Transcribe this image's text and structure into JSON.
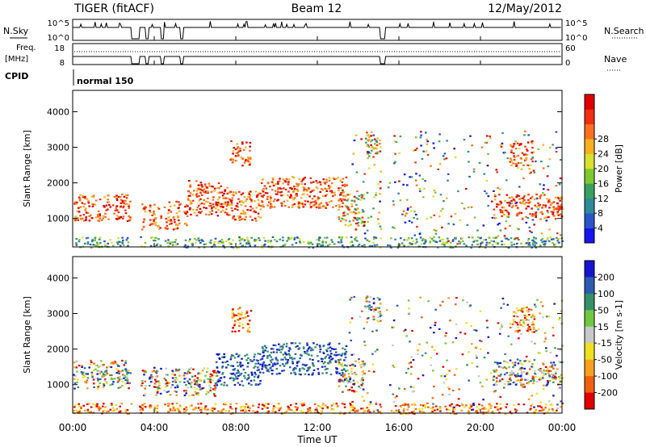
{
  "header": {
    "radar": "TIGER (fitACF)",
    "beam": "Beam 12",
    "date": "12/May/2012"
  },
  "top_panels": {
    "nsky_label": "N.Sky",
    "nsky_ticks": [
      "10^5",
      "10^0"
    ],
    "nsearch_label": "N.Search",
    "nsearch_ticks": [
      "10^5",
      "10^0"
    ],
    "freq_label_1": "Freq.",
    "freq_label_2": "[MHz]",
    "freq_ticks": [
      "18",
      "8"
    ],
    "nave_label": "Nave",
    "nave_ticks": [
      "60",
      "0"
    ],
    "cpid_label": "CPID",
    "cpid_value": "normal 150"
  },
  "chart_data": [
    {
      "type": "heatmap",
      "name": "power-panel",
      "ylabel": "Slant Range [km]",
      "ylim": [
        200,
        4600
      ],
      "yticks": [
        "1000",
        "2000",
        "3000",
        "4000"
      ],
      "x_range_hours": [
        0,
        24
      ],
      "colorbar": {
        "label": "Power [dB]",
        "ticks": [
          "4",
          "8",
          "12",
          "16",
          "20",
          "24",
          "28"
        ],
        "colors": [
          "#1515f0",
          "#2a55c8",
          "#2e8a9a",
          "#3aa060",
          "#80c830",
          "#d8e030",
          "#f8b020",
          "#f87020",
          "#f03010",
          "#e00000"
        ]
      },
      "features": [
        {
          "t0": 0.0,
          "t1": 2.8,
          "r0": 950,
          "r1": 1700,
          "level": "strong"
        },
        {
          "t0": 3.3,
          "t1": 5.6,
          "r0": 700,
          "r1": 1500,
          "level": "strong"
        },
        {
          "t0": 5.6,
          "t1": 7.6,
          "r0": 1100,
          "r1": 2100,
          "level": "strong"
        },
        {
          "t0": 7.3,
          "t1": 9.2,
          "r0": 950,
          "r1": 1800,
          "level": "strong"
        },
        {
          "t0": 9.2,
          "t1": 13.4,
          "r0": 1300,
          "r1": 2200,
          "level": "strong"
        },
        {
          "t0": 13.0,
          "t1": 14.3,
          "r0": 800,
          "r1": 1800,
          "level": "mixed"
        },
        {
          "t0": 7.7,
          "t1": 8.7,
          "r0": 2500,
          "r1": 3200,
          "level": "strong"
        },
        {
          "t0": 14.3,
          "t1": 15.2,
          "r0": 2700,
          "r1": 3500,
          "level": "mixed"
        },
        {
          "t0": 20.6,
          "t1": 24.0,
          "r0": 1000,
          "r1": 1700,
          "level": "strong"
        },
        {
          "t0": 21.4,
          "t1": 22.6,
          "r0": 2500,
          "r1": 3200,
          "level": "strong"
        },
        {
          "t0": 0.0,
          "t1": 24.0,
          "r0": 200,
          "r1": 500,
          "level": "weak"
        },
        {
          "t0": 13.5,
          "t1": 24.0,
          "r0": 300,
          "r1": 3500,
          "level": "sparse"
        }
      ]
    },
    {
      "type": "heatmap",
      "name": "velocity-panel",
      "ylabel": "Slant Range [km]",
      "ylim": [
        200,
        4600
      ],
      "yticks": [
        "1000",
        "2000",
        "3000",
        "4000"
      ],
      "x_range_hours": [
        0,
        24
      ],
      "colorbar": {
        "label": "Velocity [m s-1]",
        "ticks": [
          "200",
          "100",
          "50",
          "15",
          "-15",
          "-50",
          "-100",
          "-200"
        ],
        "colors": [
          "#1515d0",
          "#2c5cb0",
          "#35906a",
          "#70c840",
          "#c8c8c8",
          "#f0e020",
          "#f8a020",
          "#f06010",
          "#e00000"
        ]
      },
      "features": [
        {
          "t0": 0.0,
          "t1": 2.8,
          "r0": 900,
          "r1": 1700,
          "level": "mixed"
        },
        {
          "t0": 3.3,
          "t1": 7.0,
          "r0": 700,
          "r1": 1500,
          "level": "mixed"
        },
        {
          "t0": 7.0,
          "t1": 9.2,
          "r0": 1000,
          "r1": 1900,
          "level": "away"
        },
        {
          "t0": 9.2,
          "t1": 13.4,
          "r0": 1300,
          "r1": 2200,
          "level": "away"
        },
        {
          "t0": 13.0,
          "t1": 14.3,
          "r0": 800,
          "r1": 1700,
          "level": "mixed"
        },
        {
          "t0": 7.7,
          "t1": 8.7,
          "r0": 2500,
          "r1": 3200,
          "level": "toward"
        },
        {
          "t0": 14.3,
          "t1": 15.2,
          "r0": 2700,
          "r1": 3500,
          "level": "mixed"
        },
        {
          "t0": 20.6,
          "t1": 24.0,
          "r0": 1000,
          "r1": 1700,
          "level": "mixed"
        },
        {
          "t0": 21.4,
          "t1": 22.6,
          "r0": 2500,
          "r1": 3200,
          "level": "toward"
        },
        {
          "t0": 0.0,
          "t1": 24.0,
          "r0": 200,
          "r1": 500,
          "level": "toward"
        },
        {
          "t0": 13.5,
          "t1": 24.0,
          "r0": 300,
          "r1": 3500,
          "level": "sparse"
        }
      ]
    }
  ],
  "x_axis": {
    "label": "Time UT",
    "ticks": [
      "00:00",
      "04:00",
      "08:00",
      "12:00",
      "16:00",
      "20:00",
      "00:00"
    ]
  }
}
